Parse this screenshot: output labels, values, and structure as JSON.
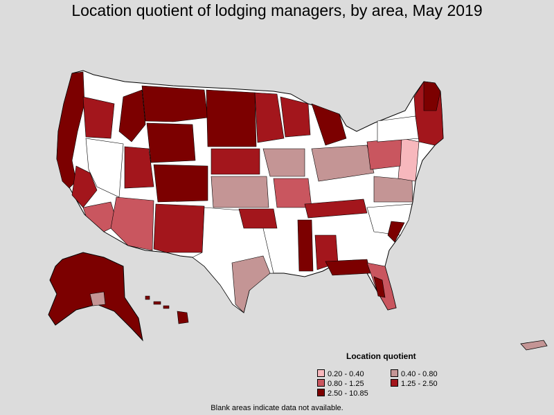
{
  "title": "Location quotient of lodging managers, by area, May 2019",
  "legend": {
    "title": "Location quotient",
    "items": [
      {
        "label": "0.20 - 0.40",
        "color": "#f7b8bd"
      },
      {
        "label": "0.40 - 0.80",
        "color": "#c49595"
      },
      {
        "label": "0.80 - 1.25",
        "color": "#c9565f"
      },
      {
        "label": "1.25 - 2.50",
        "color": "#a3161c"
      },
      {
        "label": "2.50 - 10.85",
        "color": "#7c0000"
      }
    ]
  },
  "note": "Blank areas indicate data not available.",
  "colors": {
    "blank": "#ffffff",
    "background": "#dcdcdc",
    "border": "#000000"
  }
}
